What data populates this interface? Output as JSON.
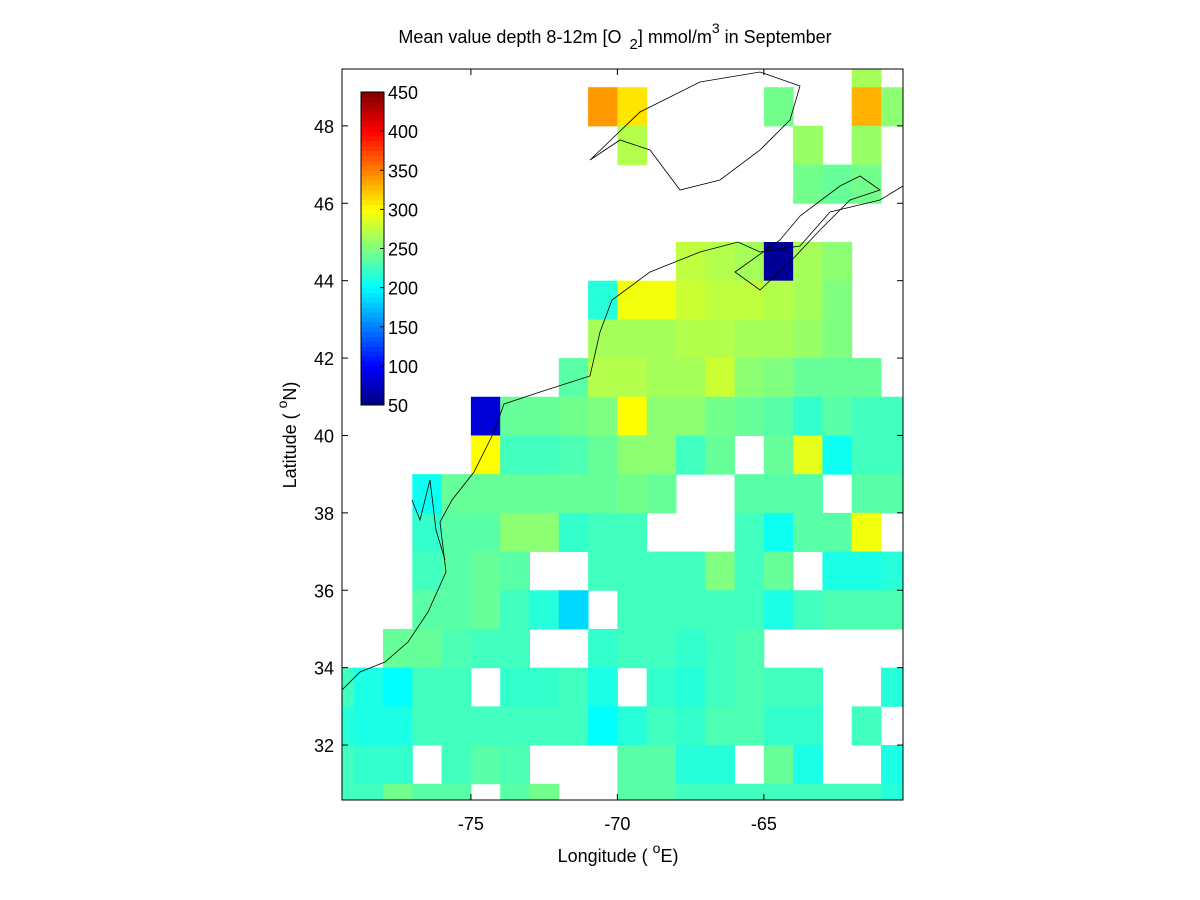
{
  "chart_data": {
    "type": "heatmap",
    "title": [
      "Mean value depth 8-12m [O",
      "2",
      "] mmol/m",
      "3",
      " in September"
    ],
    "xlabel": [
      "Longitude ( ",
      "o",
      "E)"
    ],
    "ylabel": [
      "Latitude ( ",
      "o",
      "N)"
    ],
    "x": [
      -79.5,
      -78.5,
      -77.5,
      -76.5,
      -75.5,
      -74.5,
      -73.5,
      -72.5,
      -71.5,
      -70.5,
      -69.5,
      -68.5,
      -67.5,
      -66.5,
      -65.5,
      -64.5,
      -63.5,
      -62.5,
      -61.5,
      -60.5
    ],
    "y": [
      49.5,
      48.5,
      47.5,
      46.5,
      45.5,
      44.5,
      43.5,
      42.5,
      41.5,
      40.5,
      39.5,
      38.5,
      37.5,
      36.5,
      35.5,
      34.5,
      33.5,
      32.5,
      31.5,
      30.5
    ],
    "values": [
      [
        null,
        null,
        null,
        null,
        null,
        null,
        null,
        null,
        null,
        null,
        null,
        null,
        null,
        null,
        null,
        null,
        null,
        null,
        265,
        null
      ],
      [
        null,
        null,
        null,
        null,
        null,
        null,
        null,
        null,
        null,
        340,
        310,
        null,
        null,
        null,
        null,
        245,
        null,
        null,
        330,
        255
      ],
      [
        null,
        null,
        null,
        null,
        null,
        null,
        null,
        null,
        null,
        null,
        270,
        null,
        null,
        null,
        null,
        null,
        260,
        null,
        260,
        null
      ],
      [
        null,
        null,
        null,
        null,
        null,
        null,
        null,
        null,
        null,
        null,
        null,
        null,
        null,
        null,
        null,
        null,
        245,
        240,
        245,
        null
      ],
      [
        null,
        null,
        null,
        null,
        null,
        null,
        null,
        null,
        null,
        null,
        null,
        null,
        null,
        null,
        null,
        null,
        null,
        null,
        null,
        null
      ],
      [
        null,
        null,
        null,
        null,
        null,
        null,
        null,
        null,
        null,
        null,
        null,
        null,
        275,
        270,
        265,
        60,
        265,
        255,
        null,
        null
      ],
      [
        null,
        null,
        null,
        null,
        null,
        null,
        null,
        null,
        null,
        215,
        295,
        295,
        280,
        275,
        275,
        270,
        265,
        250,
        null,
        null
      ],
      [
        null,
        null,
        null,
        null,
        null,
        null,
        null,
        null,
        null,
        265,
        265,
        265,
        270,
        270,
        265,
        265,
        260,
        250,
        null,
        null
      ],
      [
        null,
        null,
        null,
        null,
        null,
        null,
        null,
        null,
        235,
        270,
        270,
        265,
        265,
        280,
        255,
        250,
        240,
        240,
        240,
        null
      ],
      [
        null,
        null,
        null,
        null,
        null,
        85,
        240,
        240,
        245,
        250,
        300,
        255,
        255,
        245,
        240,
        235,
        220,
        235,
        225,
        225
      ],
      [
        null,
        null,
        null,
        null,
        null,
        300,
        225,
        225,
        230,
        240,
        255,
        255,
        225,
        240,
        null,
        240,
        290,
        205,
        225,
        225
      ],
      [
        null,
        null,
        null,
        205,
        240,
        240,
        240,
        240,
        240,
        240,
        245,
        240,
        null,
        null,
        235,
        235,
        235,
        null,
        235,
        235
      ],
      [
        null,
        null,
        null,
        220,
        235,
        235,
        255,
        255,
        220,
        225,
        225,
        null,
        null,
        null,
        225,
        205,
        235,
        235,
        295,
        null
      ],
      [
        null,
        null,
        null,
        225,
        235,
        240,
        235,
        null,
        null,
        225,
        225,
        225,
        225,
        250,
        225,
        240,
        null,
        210,
        210,
        215
      ],
      [
        null,
        null,
        null,
        235,
        235,
        240,
        225,
        215,
        185,
        null,
        225,
        225,
        225,
        225,
        225,
        210,
        225,
        230,
        230,
        230
      ],
      [
        null,
        null,
        240,
        240,
        230,
        225,
        225,
        null,
        null,
        220,
        225,
        225,
        220,
        225,
        230,
        null,
        null,
        null,
        null,
        null
      ],
      [
        225,
        210,
        200,
        225,
        225,
        null,
        220,
        220,
        225,
        210,
        null,
        220,
        215,
        225,
        230,
        225,
        225,
        null,
        null,
        215
      ],
      [
        215,
        210,
        210,
        225,
        225,
        225,
        225,
        225,
        225,
        200,
        215,
        225,
        220,
        230,
        230,
        220,
        220,
        null,
        225,
        null
      ],
      [
        225,
        220,
        220,
        null,
        225,
        235,
        230,
        null,
        null,
        null,
        235,
        235,
        215,
        215,
        null,
        240,
        210,
        null,
        null,
        210
      ],
      [
        225,
        225,
        245,
        235,
        235,
        null,
        235,
        245,
        null,
        null,
        235,
        235,
        225,
        225,
        225,
        225,
        225,
        225,
        225,
        215
      ]
    ],
    "xlim": [
      -79.4,
      -60.25
    ],
    "ylim": [
      30.58,
      49.47
    ],
    "xticks": [
      -75,
      -70,
      -65
    ],
    "yticks": [
      32,
      34,
      36,
      38,
      40,
      42,
      44,
      46,
      48
    ],
    "clim": [
      50,
      450
    ],
    "cticks": [
      50,
      100,
      150,
      200,
      250,
      300,
      350,
      400,
      450
    ],
    "colormap": "jet"
  }
}
